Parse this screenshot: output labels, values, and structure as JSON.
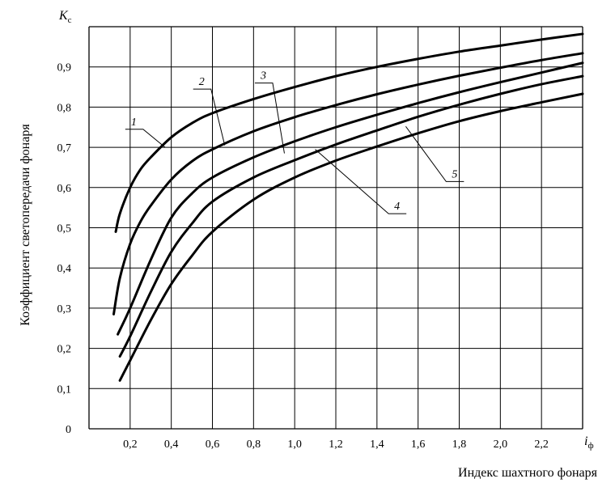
{
  "chart_data": {
    "type": "line",
    "y_symbol": {
      "main": "K",
      "sub": "с"
    },
    "x_symbol": {
      "main": "i",
      "sub": "ф"
    },
    "ylabel": "Коэффициент светопередачи фонаря",
    "xlabel": "Индекс шахтного фонаря",
    "xlim": [
      0,
      2.4
    ],
    "ylim": [
      0,
      1.0
    ],
    "grid": true,
    "x_ticks": [
      {
        "value": 0.2,
        "label": "0,2"
      },
      {
        "value": 0.4,
        "label": "0,4"
      },
      {
        "value": 0.6,
        "label": "0,6"
      },
      {
        "value": 0.8,
        "label": "0,8"
      },
      {
        "value": 1.0,
        "label": "1,0"
      },
      {
        "value": 1.2,
        "label": "1,2"
      },
      {
        "value": 1.4,
        "label": "1,4"
      },
      {
        "value": 1.6,
        "label": "1,6"
      },
      {
        "value": 1.8,
        "label": "1,8"
      },
      {
        "value": 2.0,
        "label": "2,0"
      },
      {
        "value": 2.2,
        "label": "2,2"
      }
    ],
    "y_ticks": [
      {
        "value": 0.0,
        "label": "0"
      },
      {
        "value": 0.1,
        "label": "0,1"
      },
      {
        "value": 0.2,
        "label": "0,2"
      },
      {
        "value": 0.3,
        "label": "0,3"
      },
      {
        "value": 0.4,
        "label": "0,4"
      },
      {
        "value": 0.5,
        "label": "0,5"
      },
      {
        "value": 0.6,
        "label": "0,6"
      },
      {
        "value": 0.7,
        "label": "0,7"
      },
      {
        "value": 0.8,
        "label": "0,8"
      },
      {
        "value": 0.9,
        "label": "0,9"
      }
    ],
    "series": [
      {
        "name": "1",
        "x": [
          0.13,
          0.15,
          0.2,
          0.25,
          0.3,
          0.4,
          0.5,
          0.6,
          0.8,
          1.0,
          1.2,
          1.4,
          1.6,
          1.8,
          2.0,
          2.2,
          2.4
        ],
        "y": [
          0.49,
          0.535,
          0.6,
          0.645,
          0.675,
          0.725,
          0.76,
          0.785,
          0.82,
          0.85,
          0.877,
          0.9,
          0.92,
          0.938,
          0.953,
          0.968,
          0.982
        ]
      },
      {
        "name": "2",
        "x": [
          0.12,
          0.15,
          0.2,
          0.25,
          0.3,
          0.4,
          0.5,
          0.6,
          0.8,
          1.0,
          1.2,
          1.4,
          1.6,
          1.8,
          2.0,
          2.2,
          2.4
        ],
        "y": [
          0.285,
          0.375,
          0.46,
          0.515,
          0.555,
          0.62,
          0.665,
          0.695,
          0.74,
          0.775,
          0.805,
          0.832,
          0.856,
          0.878,
          0.898,
          0.917,
          0.934
        ]
      },
      {
        "name": "3",
        "x": [
          0.14,
          0.2,
          0.3,
          0.4,
          0.5,
          0.6,
          0.8,
          1.0,
          1.2,
          1.4,
          1.6,
          1.8,
          2.0,
          2.2,
          2.4
        ],
        "y": [
          0.235,
          0.3,
          0.42,
          0.525,
          0.585,
          0.625,
          0.675,
          0.715,
          0.75,
          0.781,
          0.81,
          0.837,
          0.862,
          0.886,
          0.91
        ]
      },
      {
        "name": "4",
        "x": [
          0.15,
          0.2,
          0.3,
          0.4,
          0.5,
          0.6,
          0.8,
          1.0,
          1.2,
          1.4,
          1.6,
          1.8,
          2.0,
          2.2,
          2.4
        ],
        "y": [
          0.18,
          0.23,
          0.34,
          0.44,
          0.51,
          0.565,
          0.625,
          0.668,
          0.707,
          0.742,
          0.776,
          0.806,
          0.833,
          0.857,
          0.877
        ]
      },
      {
        "name": "5",
        "x": [
          0.15,
          0.2,
          0.3,
          0.4,
          0.5,
          0.6,
          0.8,
          1.0,
          1.2,
          1.4,
          1.6,
          1.8,
          2.0,
          2.2,
          2.4
        ],
        "y": [
          0.12,
          0.17,
          0.27,
          0.36,
          0.43,
          0.49,
          0.57,
          0.625,
          0.667,
          0.702,
          0.735,
          0.765,
          0.79,
          0.812,
          0.833
        ]
      }
    ],
    "curve_labels": [
      {
        "series": "1",
        "text": "1",
        "x": 0.2,
        "y": 0.755,
        "leader_to": [
          0.37,
          0.7
        ]
      },
      {
        "series": "2",
        "text": "2",
        "x": 0.53,
        "y": 0.855,
        "leader_to": [
          0.66,
          0.705
        ]
      },
      {
        "series": "3",
        "text": "3",
        "x": 0.83,
        "y": 0.87,
        "leader_to": [
          0.95,
          0.685
        ]
      },
      {
        "series": "4",
        "text": "4",
        "x": 1.48,
        "y": 0.545,
        "leader_to": [
          1.1,
          0.695
        ]
      },
      {
        "series": "5",
        "text": "5",
        "x": 1.76,
        "y": 0.625,
        "leader_to": [
          1.54,
          0.752
        ]
      }
    ]
  }
}
